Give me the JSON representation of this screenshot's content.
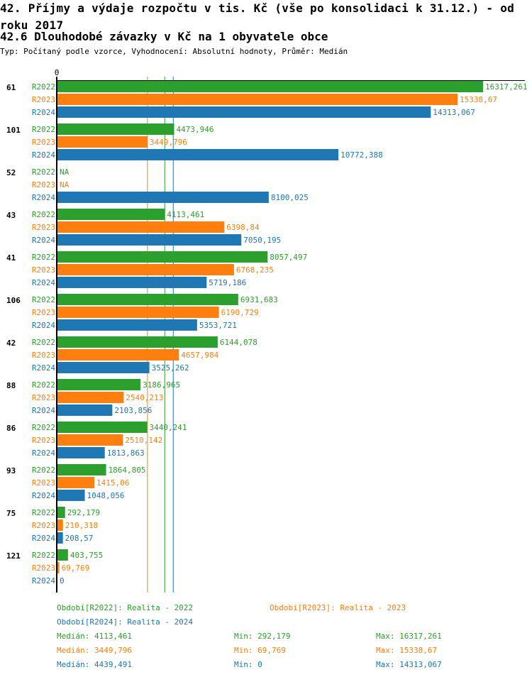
{
  "title": "42. Příjmy a výdaje rozpočtu v tis. Kč (vše po konsolidaci k 31.12.) - od roku 2017",
  "subtitle": "42.6 Dlouhodobé závazky v Kč na 1 obyvatele obce",
  "info": "Typ: Počítaný podle vzorce, Vyhodnocení: Absolutní hodnoty, Průměr: Medián",
  "chart_data": {
    "type": "bar",
    "orientation": "horizontal",
    "xlim": [
      0,
      16317.261
    ],
    "x_tick_labels": [
      "0"
    ],
    "categories": [
      "61",
      "101",
      "52",
      "43",
      "41",
      "106",
      "42",
      "88",
      "86",
      "93",
      "75",
      "121"
    ],
    "series": [
      {
        "name": "R2022",
        "color": "#2ca02c",
        "values": [
          16317.261,
          4473.946,
          null,
          4113.461,
          8057.497,
          6931.683,
          6144.078,
          3186.965,
          3440.241,
          1864.805,
          292.179,
          403.755
        ],
        "labels": [
          "16317,261",
          "4473,946",
          "NA",
          "4113,461",
          "8057,497",
          "6931,683",
          "6144,078",
          "3186,965",
          "3440,241",
          "1864,805",
          "292,179",
          "403,755"
        ]
      },
      {
        "name": "R2023",
        "color": "#ff7f0e",
        "values": [
          15338.67,
          3449.796,
          null,
          6398.84,
          6768.235,
          6190.729,
          4657.984,
          2540.213,
          2510.142,
          1415.06,
          210.318,
          69.769
        ],
        "labels": [
          "15338,67",
          "3449,796",
          "NA",
          "6398,84",
          "6768,235",
          "6190,729",
          "4657,984",
          "2540,213",
          "2510,142",
          "1415,06",
          "210,318",
          "69,769"
        ]
      },
      {
        "name": "R2024",
        "color": "#1f77b4",
        "values": [
          14313.067,
          10772.388,
          8100.025,
          7050.195,
          5719.186,
          5353.721,
          3525.262,
          2103.856,
          1813.863,
          1048.056,
          208.57,
          0
        ],
        "labels": [
          "14313,067",
          "10772,388",
          "8100,025",
          "7050,195",
          "5719,186",
          "5353,721",
          "3525,262",
          "2103,856",
          "1813,863",
          "1048,056",
          "208,57",
          "0"
        ]
      }
    ],
    "medians": [
      4113.461,
      3449.796,
      4439.491
    ]
  },
  "legend": {
    "periods": [
      "Období[R2022]: Realita - 2022",
      "Období[R2023]: Realita - 2023",
      "Období[R2024]: Realita - 2024"
    ],
    "stats": [
      {
        "median": "Medián: 4113,461",
        "min": "Min: 292,179",
        "max": "Max: 16317,261"
      },
      {
        "median": "Medián: 3449,796",
        "min": "Min: 69,769",
        "max": "Max: 15338,67"
      },
      {
        "median": "Medián: 4439,491",
        "min": "Min: 0",
        "max": "Max: 14313,067"
      }
    ]
  }
}
